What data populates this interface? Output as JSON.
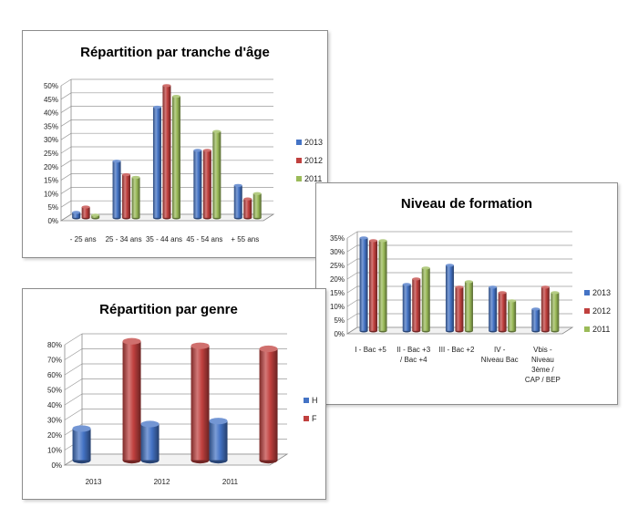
{
  "colors": {
    "2013": "#4473c5",
    "2012": "#c0403e",
    "2011": "#9bbb59",
    "H": "#4473c5",
    "F": "#c0403e"
  },
  "chart_data": [
    {
      "type": "bar",
      "title": "Répartition par tranche d'âge",
      "categories": [
        "- 25 ans",
        "25 - 34 ans",
        "35 - 44 ans",
        "45 - 54 ans",
        "+ 55 ans"
      ],
      "series": [
        {
          "name": "2013",
          "values": [
            2,
            21,
            41,
            25,
            12
          ]
        },
        {
          "name": "2012",
          "values": [
            4,
            16,
            49,
            25,
            7
          ]
        },
        {
          "name": "2011",
          "values": [
            1,
            15,
            45,
            32,
            9
          ]
        }
      ],
      "ylim": [
        0,
        50
      ],
      "yticks": [
        "0%",
        "5%",
        "10%",
        "15%",
        "20%",
        "25%",
        "30%",
        "35%",
        "40%",
        "45%",
        "50%"
      ],
      "legend": "right",
      "grid": true
    },
    {
      "type": "bar",
      "title": "Niveau de formation",
      "categories": [
        "I - Bac +5",
        "II - Bac +3 / Bac +4",
        "III - Bac +2",
        "IV - Niveau Bac",
        "Vbis - Niveau 3ème / CAP / BEP"
      ],
      "category_lines": [
        [
          "I - Bac +5"
        ],
        [
          "II - Bac +3",
          "/ Bac +4"
        ],
        [
          "III - Bac +2"
        ],
        [
          "IV -",
          "Niveau Bac"
        ],
        [
          "Vbis -",
          "Niveau",
          "3ème /",
          "CAP / BEP"
        ]
      ],
      "series": [
        {
          "name": "2013",
          "values": [
            34,
            17,
            24,
            16,
            8
          ]
        },
        {
          "name": "2012",
          "values": [
            33,
            19,
            16,
            14,
            16
          ]
        },
        {
          "name": "2011",
          "values": [
            33,
            23,
            18,
            11,
            14
          ]
        }
      ],
      "ylim": [
        0,
        35
      ],
      "yticks": [
        "0%",
        "5%",
        "10%",
        "15%",
        "20%",
        "25%",
        "30%",
        "35%"
      ],
      "legend": "right",
      "grid": true
    },
    {
      "type": "bar",
      "title": "Répartition par genre",
      "categories": [
        "2013",
        "2012",
        "2011"
      ],
      "series": [
        {
          "name": "H",
          "values": [
            21,
            24,
            26
          ]
        },
        {
          "name": "F",
          "values": [
            79,
            76,
            74
          ]
        }
      ],
      "ylim": [
        0,
        80
      ],
      "yticks": [
        "0%",
        "10%",
        "20%",
        "30%",
        "40%",
        "50%",
        "60%",
        "70%",
        "80%"
      ],
      "legend": "right",
      "grid": true
    }
  ]
}
